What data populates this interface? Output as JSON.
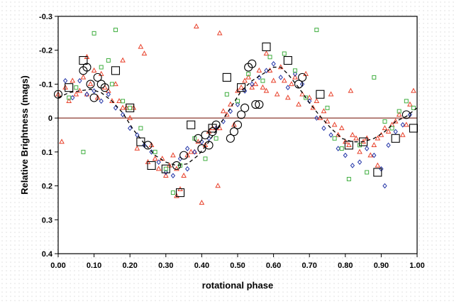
{
  "chart_data": {
    "type": "scatter",
    "xlabel": "rotational phase",
    "ylabel": "Relative Brightness (mags)",
    "xlim": [
      0.0,
      1.0
    ],
    "ylim": [
      -0.3,
      0.4
    ],
    "y_inverted": true,
    "grid": false,
    "legend": "none",
    "x_ticks": [
      "0.00",
      "0.10",
      "0.20",
      "0.30",
      "0.40",
      "0.50",
      "0.60",
      "0.70",
      "0.80",
      "0.90",
      "1.00"
    ],
    "y_ticks": [
      "-0.3",
      "-0.2",
      "-0.1",
      "0",
      "0.1",
      "0.2",
      "0.3",
      "0.4"
    ],
    "zero_line": {
      "y": 0,
      "color": "#8b3a2f"
    },
    "colors": {
      "red_triangle": "#e8402a",
      "blue_diamond": "#2436a8",
      "green_square": "#3fae3f",
      "open_circle": "#000000",
      "open_square": "#000000",
      "fit_curve": "#000000"
    },
    "series": [
      {
        "marker": "triangle",
        "color": "#e8402a",
        "points": [
          [
            0.0,
            -0.07
          ],
          [
            0.01,
            0.07
          ],
          [
            0.02,
            -0.09
          ],
          [
            0.03,
            -0.05
          ],
          [
            0.04,
            -0.11
          ],
          [
            0.05,
            -0.07
          ],
          [
            0.06,
            -0.08
          ],
          [
            0.07,
            -0.12
          ],
          [
            0.08,
            -0.07
          ],
          [
            0.09,
            -0.1
          ],
          [
            0.1,
            -0.14
          ],
          [
            0.11,
            -0.06
          ],
          [
            0.12,
            -0.13
          ],
          [
            0.13,
            -0.09
          ],
          [
            0.14,
            -0.08
          ],
          [
            0.15,
            -0.05
          ],
          [
            0.16,
            -0.1
          ],
          [
            0.17,
            -0.05
          ],
          [
            0.18,
            -0.03
          ],
          [
            0.19,
            -0.03
          ],
          [
            0.2,
            0.0
          ],
          [
            0.21,
            -0.03
          ],
          [
            0.22,
            0.09
          ],
          [
            0.23,
            -0.21
          ],
          [
            0.24,
            -0.19
          ],
          [
            0.25,
            0.13
          ],
          [
            0.26,
            0.08
          ],
          [
            0.27,
            0.12
          ],
          [
            0.28,
            0.15
          ],
          [
            0.29,
            0.12
          ],
          [
            0.3,
            0.17
          ],
          [
            0.31,
            0.14
          ],
          [
            0.32,
            0.11
          ],
          [
            0.33,
            0.15
          ],
          [
            0.34,
            0.21
          ],
          [
            0.35,
            0.17
          ],
          [
            0.36,
            0.11
          ],
          [
            0.37,
            0.1
          ],
          [
            0.38,
            0.1
          ],
          [
            0.39,
            0.07
          ],
          [
            0.4,
            0.25
          ],
          [
            0.41,
            0.08
          ],
          [
            0.42,
            0.04
          ],
          [
            0.43,
            0.03
          ],
          [
            0.44,
            0.03
          ],
          [
            0.45,
            0.03
          ],
          [
            0.46,
            -0.02
          ],
          [
            0.47,
            -0.01
          ],
          [
            0.48,
            -0.04
          ],
          [
            0.49,
            0.02
          ],
          [
            0.5,
            -0.08
          ],
          [
            0.51,
            -0.09
          ],
          [
            0.52,
            -0.11
          ],
          [
            0.53,
            -0.12
          ],
          [
            0.54,
            -0.09
          ],
          [
            0.55,
            -0.1
          ],
          [
            0.56,
            -0.14
          ],
          [
            0.57,
            -0.09
          ],
          [
            0.58,
            -0.08
          ],
          [
            0.59,
            -0.14
          ],
          [
            0.6,
            -0.11
          ],
          [
            0.61,
            -0.07
          ],
          [
            0.62,
            -0.15
          ],
          [
            0.63,
            -0.11
          ],
          [
            0.64,
            -0.06
          ],
          [
            0.65,
            -0.1
          ],
          [
            0.66,
            -0.12
          ],
          [
            0.67,
            -0.04
          ],
          [
            0.68,
            -0.07
          ],
          [
            0.69,
            -0.13
          ],
          [
            0.7,
            -0.06
          ],
          [
            0.71,
            -0.03
          ],
          [
            0.72,
            -0.05
          ],
          [
            0.73,
            0.0
          ],
          [
            0.74,
            -0.02
          ],
          [
            0.75,
            0.01
          ],
          [
            0.76,
            -0.07
          ],
          [
            0.77,
            0.02
          ],
          [
            0.78,
            0.05
          ],
          [
            0.79,
            0.03
          ],
          [
            0.8,
            0.07
          ],
          [
            0.81,
            0.08
          ],
          [
            0.82,
            0.05
          ],
          [
            0.83,
            0.06
          ],
          [
            0.84,
            0.1
          ],
          [
            0.85,
            0.07
          ],
          [
            0.86,
            0.06
          ],
          [
            0.87,
            0.11
          ],
          [
            0.88,
            0.08
          ],
          [
            0.89,
            0.06
          ],
          [
            0.9,
            0.05
          ],
          [
            0.91,
            0.03
          ],
          [
            0.92,
            0.04
          ],
          [
            0.93,
            0.02
          ],
          [
            0.94,
            0.01
          ],
          [
            0.95,
            -0.01
          ],
          [
            0.96,
            0.05
          ],
          [
            0.97,
            0.02
          ],
          [
            0.98,
            -0.04
          ],
          [
            0.99,
            -0.08
          ],
          [
            0.08,
            -0.18
          ],
          [
            0.18,
            -0.17
          ],
          [
            0.58,
            -0.19
          ],
          [
            0.385,
            -0.27
          ],
          [
            0.33,
            0.23
          ],
          [
            0.445,
            0.2
          ],
          [
            0.89,
            0.14
          ],
          [
            0.45,
            -0.25
          ],
          [
            0.815,
            -0.08
          ]
        ]
      },
      {
        "marker": "diamond",
        "color": "#2436a8",
        "points": [
          [
            0.02,
            -0.11
          ],
          [
            0.04,
            -0.06
          ],
          [
            0.06,
            -0.11
          ],
          [
            0.08,
            -0.07
          ],
          [
            0.1,
            -0.08
          ],
          [
            0.12,
            -0.05
          ],
          [
            0.14,
            -0.07
          ],
          [
            0.16,
            -0.03
          ],
          [
            0.18,
            -0.01
          ],
          [
            0.2,
            0.03
          ],
          [
            0.22,
            0.05
          ],
          [
            0.24,
            0.08
          ],
          [
            0.26,
            0.1
          ],
          [
            0.28,
            0.13
          ],
          [
            0.3,
            0.16
          ],
          [
            0.32,
            0.17
          ],
          [
            0.34,
            0.12
          ],
          [
            0.36,
            0.15
          ],
          [
            0.38,
            0.1
          ],
          [
            0.4,
            0.07
          ],
          [
            0.42,
            0.06
          ],
          [
            0.44,
            0.03
          ],
          [
            0.46,
            0.01
          ],
          [
            0.48,
            -0.02
          ],
          [
            0.5,
            -0.04
          ],
          [
            0.52,
            -0.08
          ],
          [
            0.54,
            -0.1
          ],
          [
            0.56,
            -0.12
          ],
          [
            0.58,
            -0.14
          ],
          [
            0.6,
            -0.16
          ],
          [
            0.62,
            -0.12
          ],
          [
            0.64,
            -0.09
          ],
          [
            0.66,
            -0.13
          ],
          [
            0.68,
            -0.1
          ],
          [
            0.7,
            -0.05
          ],
          [
            0.72,
            0.0
          ],
          [
            0.74,
            0.03
          ],
          [
            0.76,
            0.05
          ],
          [
            0.78,
            0.09
          ],
          [
            0.8,
            0.11
          ],
          [
            0.82,
            0.14
          ],
          [
            0.84,
            0.13
          ],
          [
            0.86,
            0.09
          ],
          [
            0.88,
            0.11
          ],
          [
            0.9,
            0.15
          ],
          [
            0.92,
            0.08
          ],
          [
            0.94,
            0.04
          ],
          [
            0.96,
            0.02
          ],
          [
            0.98,
            -0.01
          ],
          [
            0.91,
            0.2
          ],
          [
            0.36,
            0.09
          ]
        ]
      },
      {
        "marker": "square",
        "color": "#3fae3f",
        "points": [
          [
            0.03,
            -0.06
          ],
          [
            0.05,
            -0.09
          ],
          [
            0.07,
            0.1
          ],
          [
            0.1,
            -0.25
          ],
          [
            0.12,
            -0.15
          ],
          [
            0.14,
            -0.17
          ],
          [
            0.15,
            -0.1
          ],
          [
            0.16,
            -0.26
          ],
          [
            0.18,
            -0.05
          ],
          [
            0.2,
            -0.03
          ],
          [
            0.23,
            0.03
          ],
          [
            0.27,
            0.1
          ],
          [
            0.3,
            0.15
          ],
          [
            0.32,
            0.22
          ],
          [
            0.34,
            0.14
          ],
          [
            0.38,
            0.06
          ],
          [
            0.41,
            0.12
          ],
          [
            0.44,
            0.06
          ],
          [
            0.47,
            -0.07
          ],
          [
            0.5,
            -0.05
          ],
          [
            0.53,
            -0.13
          ],
          [
            0.57,
            -0.11
          ],
          [
            0.59,
            -0.18
          ],
          [
            0.63,
            -0.19
          ],
          [
            0.66,
            -0.14
          ],
          [
            0.69,
            -0.06
          ],
          [
            0.72,
            -0.26
          ],
          [
            0.75,
            -0.03
          ],
          [
            0.77,
            0.06
          ],
          [
            0.79,
            0.09
          ],
          [
            0.81,
            0.18
          ],
          [
            0.84,
            0.08
          ],
          [
            0.86,
            0.16
          ],
          [
            0.88,
            -0.12
          ],
          [
            0.91,
            0.01
          ],
          [
            0.93,
            0.03
          ],
          [
            0.95,
            -0.02
          ],
          [
            0.97,
            -0.05
          ],
          [
            0.99,
            -0.03
          ]
        ]
      },
      {
        "marker": "open-circle",
        "color": "#000000",
        "points": [
          [
            0.0,
            -0.07
          ],
          [
            0.07,
            -0.14
          ],
          [
            0.08,
            -0.15
          ],
          [
            0.09,
            -0.1
          ],
          [
            0.1,
            -0.06
          ],
          [
            0.11,
            -0.12
          ],
          [
            0.12,
            -0.1
          ],
          [
            0.13,
            -0.09
          ],
          [
            0.25,
            0.08
          ],
          [
            0.33,
            0.14
          ],
          [
            0.35,
            0.11
          ],
          [
            0.39,
            0.06
          ],
          [
            0.4,
            0.09
          ],
          [
            0.41,
            0.05
          ],
          [
            0.42,
            0.08
          ],
          [
            0.43,
            0.04
          ],
          [
            0.44,
            0.02
          ],
          [
            0.48,
            0.06
          ],
          [
            0.49,
            0.04
          ],
          [
            0.5,
            0.02
          ],
          [
            0.51,
            -0.01
          ],
          [
            0.52,
            -0.03
          ],
          [
            0.53,
            -0.15
          ],
          [
            0.54,
            -0.16
          ],
          [
            0.55,
            -0.04
          ],
          [
            0.56,
            -0.04
          ],
          [
            0.67,
            -0.1
          ],
          [
            0.68,
            -0.12
          ],
          [
            0.97,
            -0.01
          ]
        ]
      },
      {
        "marker": "open-square",
        "color": "#000000",
        "points": [
          [
            0.03,
            -0.09
          ],
          [
            0.07,
            -0.17
          ],
          [
            0.16,
            -0.14
          ],
          [
            0.2,
            -0.03
          ],
          [
            0.23,
            0.07
          ],
          [
            0.26,
            0.14
          ],
          [
            0.3,
            0.15
          ],
          [
            0.34,
            0.22
          ],
          [
            0.37,
            0.02
          ],
          [
            0.43,
            0.03
          ],
          [
            0.47,
            -0.12
          ],
          [
            0.51,
            -0.09
          ],
          [
            0.58,
            -0.21
          ],
          [
            0.64,
            -0.17
          ],
          [
            0.73,
            -0.07
          ],
          [
            0.81,
            0.08
          ],
          [
            0.85,
            0.07
          ],
          [
            0.89,
            0.16
          ],
          [
            0.94,
            0.06
          ],
          [
            0.99,
            0.03
          ]
        ]
      }
    ],
    "fit_curve": {
      "style": "dashed",
      "points": [
        [
          0.0,
          -0.06
        ],
        [
          0.03,
          -0.075
        ],
        [
          0.06,
          -0.08
        ],
        [
          0.09,
          -0.085
        ],
        [
          0.12,
          -0.075
        ],
        [
          0.15,
          -0.05
        ],
        [
          0.18,
          -0.015
        ],
        [
          0.21,
          0.035
        ],
        [
          0.24,
          0.075
        ],
        [
          0.27,
          0.11
        ],
        [
          0.3,
          0.13
        ],
        [
          0.33,
          0.14
        ],
        [
          0.36,
          0.135
        ],
        [
          0.39,
          0.11
        ],
        [
          0.42,
          0.07
        ],
        [
          0.45,
          0.02
        ],
        [
          0.48,
          -0.03
        ],
        [
          0.51,
          -0.08
        ],
        [
          0.54,
          -0.11
        ],
        [
          0.57,
          -0.13
        ],
        [
          0.6,
          -0.15
        ],
        [
          0.62,
          -0.15
        ],
        [
          0.64,
          -0.13
        ],
        [
          0.67,
          -0.09
        ],
        [
          0.7,
          -0.045
        ],
        [
          0.73,
          -0.005
        ],
        [
          0.76,
          0.03
        ],
        [
          0.79,
          0.06
        ],
        [
          0.82,
          0.07
        ],
        [
          0.85,
          0.07
        ],
        [
          0.88,
          0.06
        ],
        [
          0.91,
          0.04
        ],
        [
          0.94,
          0.01
        ],
        [
          0.97,
          -0.005
        ],
        [
          1.0,
          -0.03
        ]
      ]
    }
  }
}
